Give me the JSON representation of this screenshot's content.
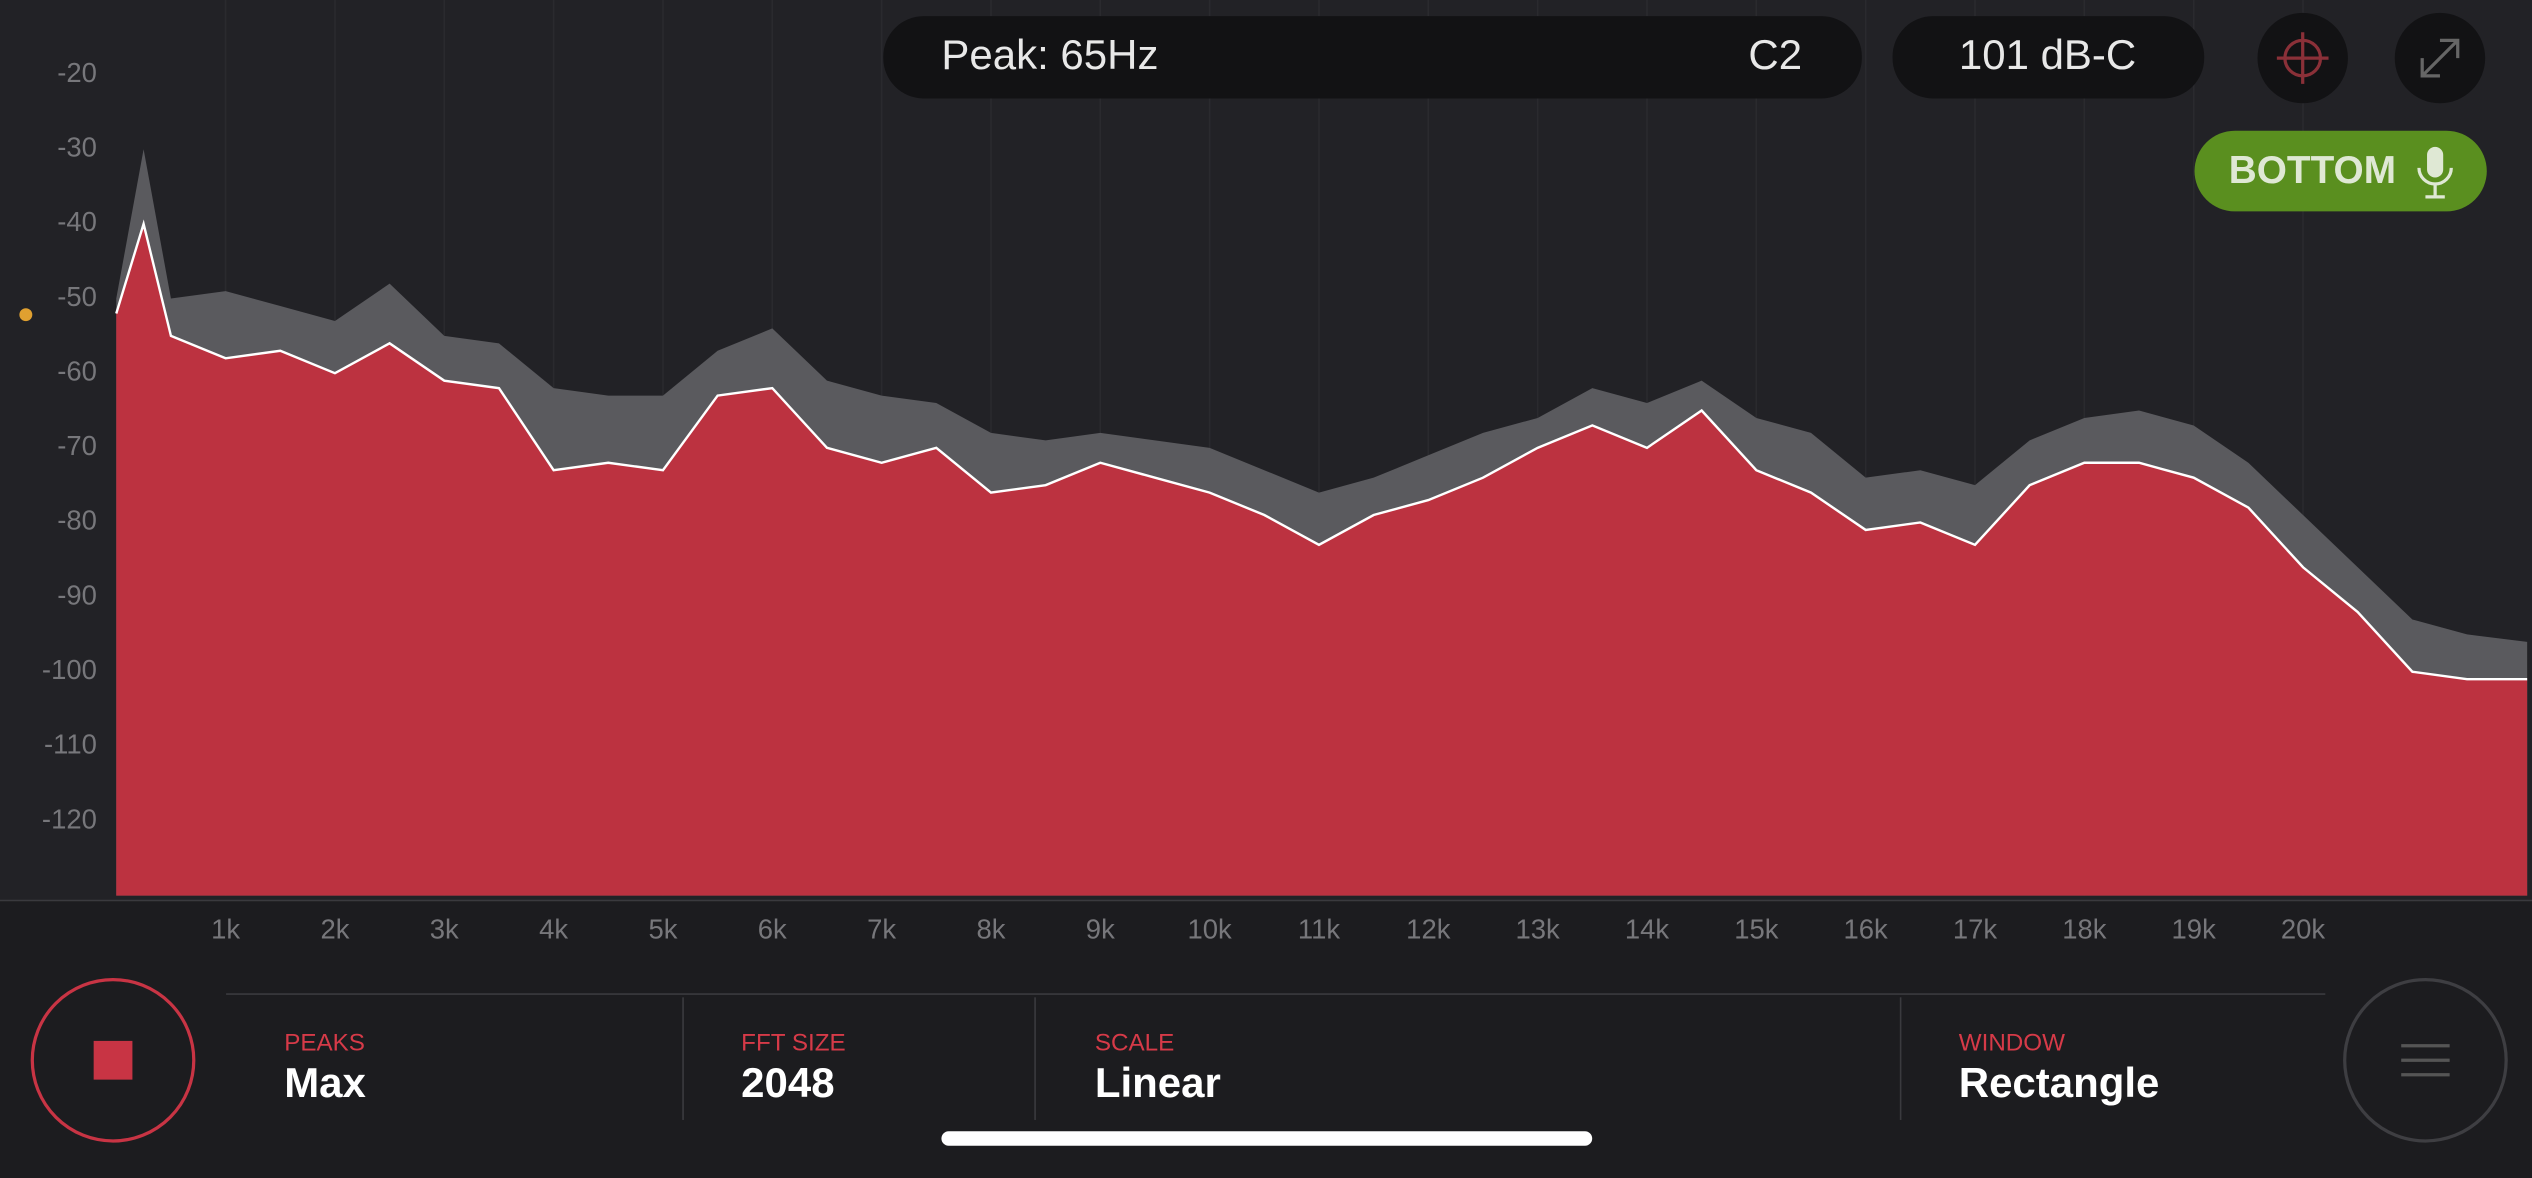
{
  "top_bar": {
    "peak": "Peak: 65Hz",
    "note": "C2",
    "level": "101 dB-C",
    "mic_button": "BOTTOM"
  },
  "settings": [
    {
      "label": "PEAKS",
      "value": "Max"
    },
    {
      "label": "FFT SIZE",
      "value": "2048"
    },
    {
      "label": "SCALE",
      "value": "Linear"
    },
    {
      "label": "WINDOW",
      "value": "Rectangle"
    }
  ],
  "chart_data": {
    "type": "area",
    "x": [
      0,
      250,
      500,
      1000,
      1500,
      2000,
      2500,
      3000,
      3500,
      4000,
      4500,
      5000,
      5500,
      6000,
      6500,
      7000,
      7500,
      8000,
      8500,
      9000,
      9500,
      10000,
      10500,
      11000,
      11500,
      12000,
      12500,
      13000,
      13500,
      14000,
      14500,
      15000,
      15500,
      16000,
      16500,
      17000,
      17500,
      18000,
      18500,
      19000,
      19500,
      20000,
      20500,
      21000,
      21500,
      22050
    ],
    "series": [
      {
        "color": "#bc3240",
        "values": [
          -52,
          -40,
          -55,
          -58,
          -57,
          -60,
          -56,
          -61,
          -62,
          -73,
          -72,
          -73,
          -63,
          -62,
          -70,
          -72,
          -70,
          -76,
          -75,
          -72,
          -74,
          -76,
          -79,
          -83,
          -79,
          -77,
          -74,
          -70,
          -67,
          -70,
          -65,
          -73,
          -76,
          -81,
          -80,
          -83,
          -75,
          -72,
          -72,
          -74,
          -78,
          -86,
          -92,
          -100,
          -101,
          -101
        ]
      },
      {
        "color": "#5a5a5e",
        "values": [
          -50,
          -30,
          -50,
          -49,
          -51,
          -53,
          -48,
          -55,
          -56,
          -62,
          -63,
          -63,
          -57,
          -54,
          -61,
          -63,
          -64,
          -68,
          -69,
          -68,
          -69,
          -70,
          -73,
          -76,
          -74,
          -71,
          -68,
          -66,
          -62,
          -64,
          -61,
          -66,
          -68,
          -74,
          -73,
          -75,
          -69,
          -66,
          -65,
          -67,
          -72,
          -79,
          -86,
          -93,
          -95,
          -96
        ]
      }
    ],
    "xlim": [
      0,
      22050
    ],
    "ylim": [
      -130,
      -10
    ],
    "xticks": [
      {
        "value": 1000,
        "label": "1k"
      },
      {
        "value": 2000,
        "label": "2k"
      },
      {
        "value": 3000,
        "label": "3k"
      },
      {
        "value": 4000,
        "label": "4k"
      },
      {
        "value": 5000,
        "label": "5k"
      },
      {
        "value": 6000,
        "label": "6k"
      },
      {
        "value": 7000,
        "label": "7k"
      },
      {
        "value": 8000,
        "label": "8k"
      },
      {
        "value": 9000,
        "label": "9k"
      },
      {
        "value": 10000,
        "label": "10k"
      },
      {
        "value": 11000,
        "label": "11k"
      },
      {
        "value": 12000,
        "label": "12k"
      },
      {
        "value": 13000,
        "label": "13k"
      },
      {
        "value": 14000,
        "label": "14k"
      },
      {
        "value": 15000,
        "label": "15k"
      },
      {
        "value": 16000,
        "label": "16k"
      },
      {
        "value": 17000,
        "label": "17k"
      },
      {
        "value": 18000,
        "label": "18k"
      },
      {
        "value": 19000,
        "label": "19k"
      },
      {
        "value": 20000,
        "label": "20k"
      }
    ],
    "yticks": [
      -20,
      -30,
      -40,
      -50,
      -60,
      -70,
      -80,
      -90,
      -100,
      -110,
      -120
    ]
  }
}
